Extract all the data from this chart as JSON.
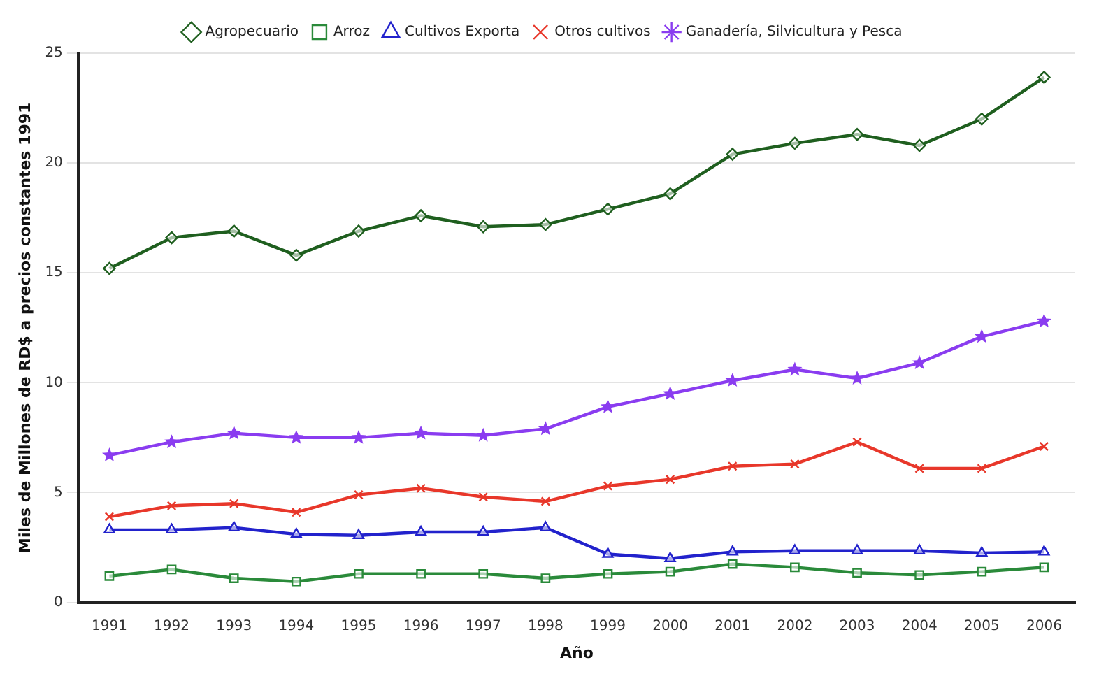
{
  "chart_data": {
    "type": "line",
    "xlabel": "Año",
    "ylabel": "Miles de Millones de RD$ a precios constantes 1991",
    "categories": [
      "1991",
      "1992",
      "1993",
      "1994",
      "1995",
      "1996",
      "1997",
      "1998",
      "1999",
      "2000",
      "2001",
      "2002",
      "2003",
      "2004",
      "2005",
      "2006"
    ],
    "series": [
      {
        "name": "Agropecuario",
        "color": "#1f5f1f",
        "marker": "diamond",
        "values": [
          15.2,
          16.6,
          16.9,
          15.8,
          16.9,
          17.6,
          17.1,
          17.2,
          17.9,
          18.6,
          20.4,
          20.9,
          21.3,
          20.8,
          22.0,
          23.9
        ]
      },
      {
        "name": "Arroz",
        "color": "#2a8a3a",
        "marker": "square",
        "values": [
          1.2,
          1.5,
          1.1,
          0.95,
          1.3,
          1.3,
          1.3,
          1.1,
          1.3,
          1.4,
          1.75,
          1.6,
          1.35,
          1.25,
          1.4,
          1.6
        ]
      },
      {
        "name": "Cultivos Exporta",
        "color": "#2222cc",
        "marker": "triangle",
        "values": [
          3.3,
          3.3,
          3.4,
          3.1,
          3.05,
          3.2,
          3.2,
          3.4,
          2.2,
          2.0,
          2.3,
          2.35,
          2.35,
          2.35,
          2.25,
          2.3
        ]
      },
      {
        "name": "Otros cultivos",
        "color": "#e8372a",
        "marker": "cross",
        "values": [
          3.9,
          4.4,
          4.5,
          4.1,
          4.9,
          5.2,
          4.8,
          4.6,
          5.3,
          5.6,
          6.2,
          6.3,
          7.3,
          6.1,
          6.1,
          7.1
        ]
      },
      {
        "name": "Ganadería, Silvicultura y Pesca",
        "color": "#8a3cf0",
        "marker": "star",
        "values": [
          6.7,
          7.3,
          7.7,
          7.5,
          7.5,
          7.7,
          7.6,
          7.9,
          8.9,
          9.5,
          10.1,
          10.6,
          10.2,
          10.9,
          12.1,
          12.8
        ]
      }
    ],
    "ylim": [
      0,
      25
    ],
    "yticks": [
      0,
      5,
      10,
      15,
      20,
      25
    ],
    "grid": "y",
    "legend": "top"
  }
}
